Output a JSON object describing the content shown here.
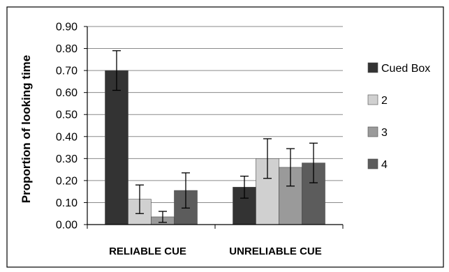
{
  "chart_data": {
    "type": "bar",
    "categories": [
      "RELIABLE CUE",
      "UNRELIABLE CUE"
    ],
    "series": [
      {
        "name": "Cued Box",
        "values": [
          0.7,
          0.17
        ],
        "errors": [
          0.09,
          0.05
        ],
        "color": "#333333"
      },
      {
        "name": "2",
        "values": [
          0.115,
          0.3
        ],
        "errors": [
          0.065,
          0.09
        ],
        "color": "#d0d0d0"
      },
      {
        "name": "3",
        "values": [
          0.035,
          0.26
        ],
        "errors": [
          0.025,
          0.085
        ],
        "color": "#9a9a9a"
      },
      {
        "name": "4",
        "values": [
          0.155,
          0.28
        ],
        "errors": [
          0.08,
          0.09
        ],
        "color": "#5c5c5c"
      }
    ],
    "title": "",
    "xlabel": "",
    "ylabel": "Proportion of looking time",
    "ylim": [
      0,
      0.9
    ],
    "yticks": [
      "0.00",
      "0.10",
      "0.20",
      "0.30",
      "0.40",
      "0.50",
      "0.60",
      "0.70",
      "0.80",
      "0.90"
    ],
    "legend_position": "right",
    "grid": "horizontal"
  }
}
